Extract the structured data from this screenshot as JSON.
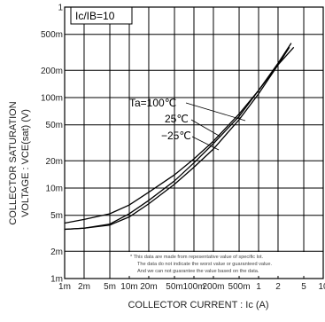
{
  "chart_data": {
    "type": "line",
    "condition_label": "Ic/IB=10",
    "xlabel": "COLLECTOR  CURRENT : Ic  (A)",
    "ylabel_line1": "COLLECTOR SATURATION",
    "ylabel_line2": "VOLTAGE : VCE(sat) (V)",
    "x_scale": "log",
    "y_scale": "log",
    "xlim": [
      0.001,
      10
    ],
    "ylim": [
      0.001,
      1
    ],
    "grid": true,
    "x_ticks": [
      {
        "value": 0.001,
        "label": "1m"
      },
      {
        "value": 0.002,
        "label": "2m"
      },
      {
        "value": 0.005,
        "label": "5m"
      },
      {
        "value": 0.01,
        "label": "10m"
      },
      {
        "value": 0.02,
        "label": "20m"
      },
      {
        "value": 0.05,
        "label": "50m"
      },
      {
        "value": 0.1,
        "label": "100m"
      },
      {
        "value": 0.2,
        "label": "200m"
      },
      {
        "value": 0.5,
        "label": "500m"
      },
      {
        "value": 1,
        "label": "1"
      },
      {
        "value": 2,
        "label": "2"
      },
      {
        "value": 5,
        "label": "5"
      },
      {
        "value": 10,
        "label": "10"
      }
    ],
    "y_ticks": [
      {
        "value": 0.001,
        "label": "1m"
      },
      {
        "value": 0.002,
        "label": "2m"
      },
      {
        "value": 0.005,
        "label": "5m"
      },
      {
        "value": 0.01,
        "label": "10m"
      },
      {
        "value": 0.02,
        "label": "20m"
      },
      {
        "value": 0.05,
        "label": "50m"
      },
      {
        "value": 0.1,
        "label": "100m"
      },
      {
        "value": 0.2,
        "label": "200m"
      },
      {
        "value": 0.5,
        "label": "500m"
      },
      {
        "value": 1,
        "label": "1"
      }
    ],
    "series": [
      {
        "name": "Ta=100℃",
        "x": [
          0.001,
          0.002,
          0.005,
          0.01,
          0.02,
          0.05,
          0.1,
          0.2,
          0.5,
          1,
          2,
          3
        ],
        "y": [
          0.0035,
          0.0036,
          0.0039,
          0.0048,
          0.0067,
          0.011,
          0.017,
          0.027,
          0.057,
          0.11,
          0.23,
          0.36
        ]
      },
      {
        "name": "25℃",
        "x": [
          0.001,
          0.002,
          0.005,
          0.01,
          0.02,
          0.05,
          0.1,
          0.2,
          0.5,
          1,
          2,
          3.2
        ],
        "y": [
          0.0035,
          0.0036,
          0.004,
          0.0052,
          0.0073,
          0.012,
          0.019,
          0.031,
          0.062,
          0.12,
          0.24,
          0.4
        ]
      },
      {
        "name": "−25℃",
        "x": [
          0.001,
          0.002,
          0.005,
          0.01,
          0.02,
          0.05,
          0.1,
          0.2,
          0.5,
          1,
          2,
          3.5
        ],
        "y": [
          0.0041,
          0.0045,
          0.0052,
          0.0065,
          0.009,
          0.014,
          0.021,
          0.033,
          0.066,
          0.12,
          0.23,
          0.36
        ]
      }
    ],
    "note_lines": [
      "* This data are made from repesentative value of specific lot.",
      "The data do not indicate the worst value or guaranteed value.",
      "And we can not guarantee the value based on the data."
    ]
  }
}
